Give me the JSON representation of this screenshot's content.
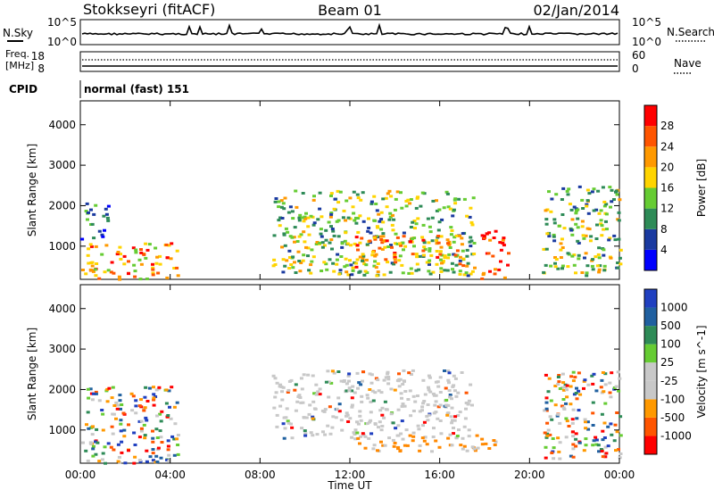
{
  "header": {
    "station": "Stokkseyri (fitACF)",
    "beam": "Beam 01",
    "date": "02/Jan/2014"
  },
  "status_panels": {
    "noise": {
      "left_label": "N.Sky",
      "right_label": "N.Search",
      "ticks_left": [
        "10^5",
        "10^0"
      ],
      "ticks_right": [
        "10^5",
        "10^0"
      ]
    },
    "freq": {
      "left_label_1": "Freq.",
      "left_label_2": "[MHz]",
      "right_label": "Nave",
      "ticks_left": [
        "18",
        "8"
      ],
      "ticks_right": [
        "60",
        "0"
      ]
    },
    "cpid": {
      "label": "CPID",
      "mode_text": "normal (fast) 151"
    }
  },
  "colors": {
    "power_scale": [
      "#0000ff",
      "#1a3aa0",
      "#2e8b57",
      "#66cc33",
      "#ffd400",
      "#ff9900",
      "#ff5500",
      "#ff0000"
    ],
    "velocity_scale": [
      "#2040c0",
      "#2060a0",
      "#2e8b57",
      "#66cc33",
      "#c8c8c8",
      "#c8c8c8",
      "#ff9900",
      "#ff5500",
      "#ff0000"
    ],
    "axis": "#000000"
  },
  "chart_data": [
    {
      "type": "heatmap",
      "title": "Power",
      "xlabel": "",
      "ylabel": "Slant Range [km]",
      "xlim": [
        "00:00",
        "00:00"
      ],
      "x_ticks": [
        "00:00",
        "04:00",
        "08:00",
        "12:00",
        "16:00",
        "20:00",
        "00:00"
      ],
      "ylim": [
        180,
        4590
      ],
      "y_ticks": [
        1000,
        2000,
        3000,
        4000
      ],
      "colorbar": {
        "label": "Power [dB]",
        "ticks": [
          4,
          8,
          12,
          16,
          20,
          24,
          28
        ]
      },
      "regions": [
        {
          "t_start": 0.0,
          "t_end": 4.3,
          "r_low": 200,
          "r_high": 1100,
          "level": "high"
        },
        {
          "t_start": 0.0,
          "t_end": 1.2,
          "r_low": 1200,
          "r_high": 2100,
          "level": "low"
        },
        {
          "t_start": 8.5,
          "t_end": 17.5,
          "r_low": 300,
          "r_high": 2400,
          "level": "medium"
        },
        {
          "t_start": 12.0,
          "t_end": 17.0,
          "r_low": 500,
          "r_high": 1300,
          "level": "high"
        },
        {
          "t_start": 17.8,
          "t_end": 19.0,
          "r_low": 200,
          "r_high": 1400,
          "level": "very high"
        },
        {
          "t_start": 20.5,
          "t_end": 24.0,
          "r_low": 300,
          "r_high": 2500,
          "level": "medium"
        }
      ]
    },
    {
      "type": "heatmap",
      "title": "Velocity",
      "xlabel": "Time UT",
      "ylabel": "Slant Range [km]",
      "xlim": [
        "00:00",
        "00:00"
      ],
      "x_ticks": [
        "00:00",
        "04:00",
        "08:00",
        "12:00",
        "16:00",
        "20:00",
        "00:00"
      ],
      "ylim": [
        180,
        4590
      ],
      "y_ticks": [
        1000,
        2000,
        3000,
        4000
      ],
      "colorbar": {
        "label": "Velocity [m s^-1]",
        "ticks": [
          1000,
          500,
          100,
          25,
          -25,
          -100,
          -500,
          -1000
        ]
      },
      "regions": [
        {
          "t_start": 0.0,
          "t_end": 4.3,
          "r_low": 200,
          "r_high": 2100,
          "level": "mixed low velocity"
        },
        {
          "t_start": 8.5,
          "t_end": 17.5,
          "r_low": 800,
          "r_high": 2500,
          "level": "near zero"
        },
        {
          "t_start": 12.0,
          "t_end": 18.5,
          "r_low": 500,
          "r_high": 900,
          "level": "negative"
        },
        {
          "t_start": 20.5,
          "t_end": 24.0,
          "r_low": 300,
          "r_high": 2500,
          "level": "mixed"
        }
      ]
    }
  ]
}
